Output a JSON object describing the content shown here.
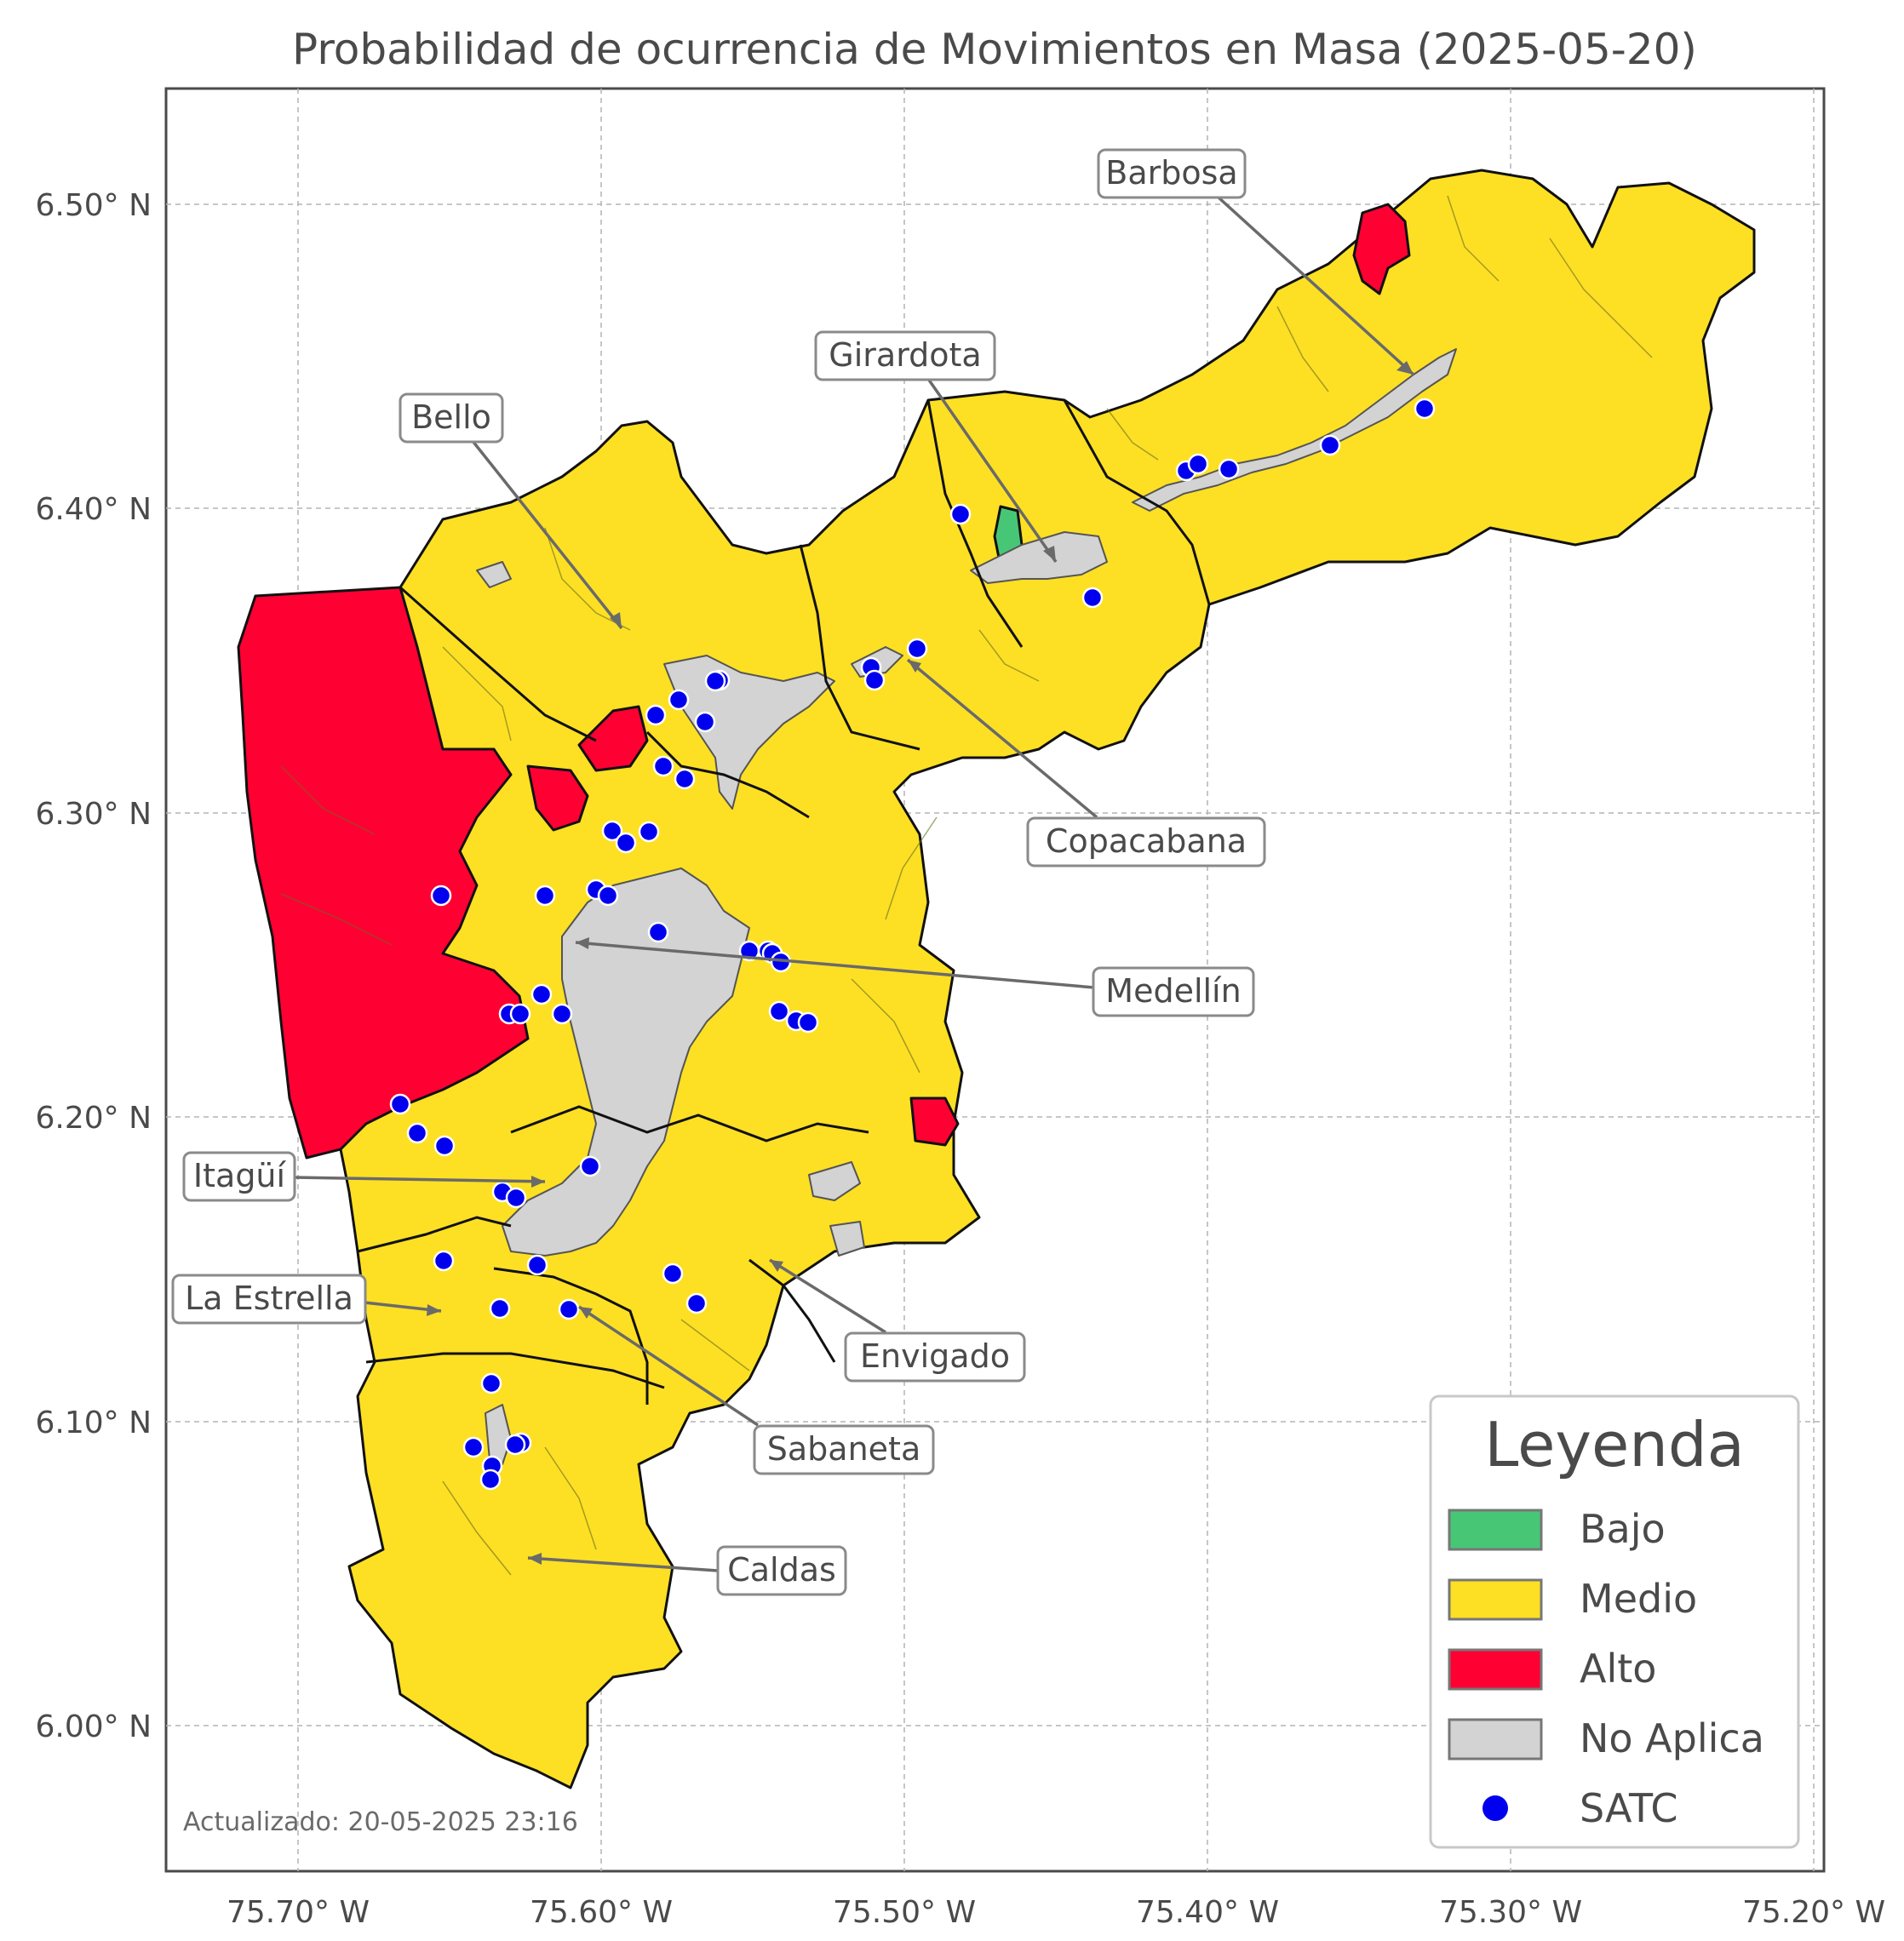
{
  "title": "Probabilidad de ocurrencia de Movimientos en Masa (2025-05-20)",
  "axes": {
    "x_ticks": [
      "75.70° W",
      "75.60° W",
      "75.50° W",
      "75.40° W",
      "75.30° W",
      "75.20° W"
    ],
    "y_ticks": [
      "6.50° N",
      "6.40° N",
      "6.30° N",
      "6.20° N",
      "6.10° N",
      "6.00° N"
    ]
  },
  "colors": {
    "bajo": "#47c776",
    "medio": "#fde023",
    "alto": "#ff0033",
    "no_aplica": "#d3d3d3",
    "satc": "#0000ee"
  },
  "municipalities": [
    {
      "label": "Barbosa"
    },
    {
      "label": "Girardota"
    },
    {
      "label": "Bello"
    },
    {
      "label": "Copacabana"
    },
    {
      "label": "Medellín"
    },
    {
      "label": "Itagüí"
    },
    {
      "label": "La Estrella"
    },
    {
      "label": "Envigado"
    },
    {
      "label": "Sabaneta"
    },
    {
      "label": "Caldas"
    }
  ],
  "legend": {
    "title": "Leyenda",
    "items": [
      {
        "label": "Bajo",
        "color": "#47c776"
      },
      {
        "label": "Medio",
        "color": "#fde023"
      },
      {
        "label": "Alto",
        "color": "#ff0033"
      },
      {
        "label": "No Aplica",
        "color": "#d3d3d3"
      },
      {
        "label": "SATC",
        "color": "#0000ee"
      }
    ]
  },
  "updated": "Actualizado: 20-05-2025 23:16"
}
